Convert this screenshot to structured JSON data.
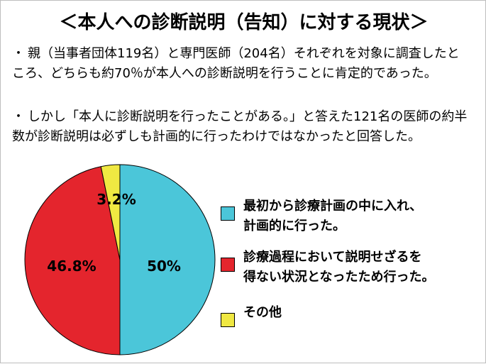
{
  "title": "＜本人への診断説明（告知）に対する現状＞",
  "bullets": [
    "親（当事者団体119名）と専門医師（204名）それぞれを対象に調査したところ、どちらも約70％が本人への診断説明を行うことに肯定的であった。",
    "しかし「本人に診断説明を行ったことがある。」と答えた121名の医師の約半数が診断説明は必ずしも計画的に行ったわけではなかったと回答した。"
  ],
  "bullet_marker": "・",
  "chart_data": {
    "type": "pie",
    "start": "top",
    "direction": "clockwise",
    "slices": [
      {
        "label": "最初から診療計画の中に入れ、\n計画的に行った。",
        "value": 50,
        "display": "50%",
        "color": "#4bc6d9"
      },
      {
        "label": "診療過程において説明せざるを\n得ない状況となったため行った。",
        "value": 46.8,
        "display": "46.8%",
        "color": "#e4252d"
      },
      {
        "label": "その他",
        "value": 3.2,
        "display": "3.2%",
        "color": "#f0e842"
      }
    ]
  }
}
